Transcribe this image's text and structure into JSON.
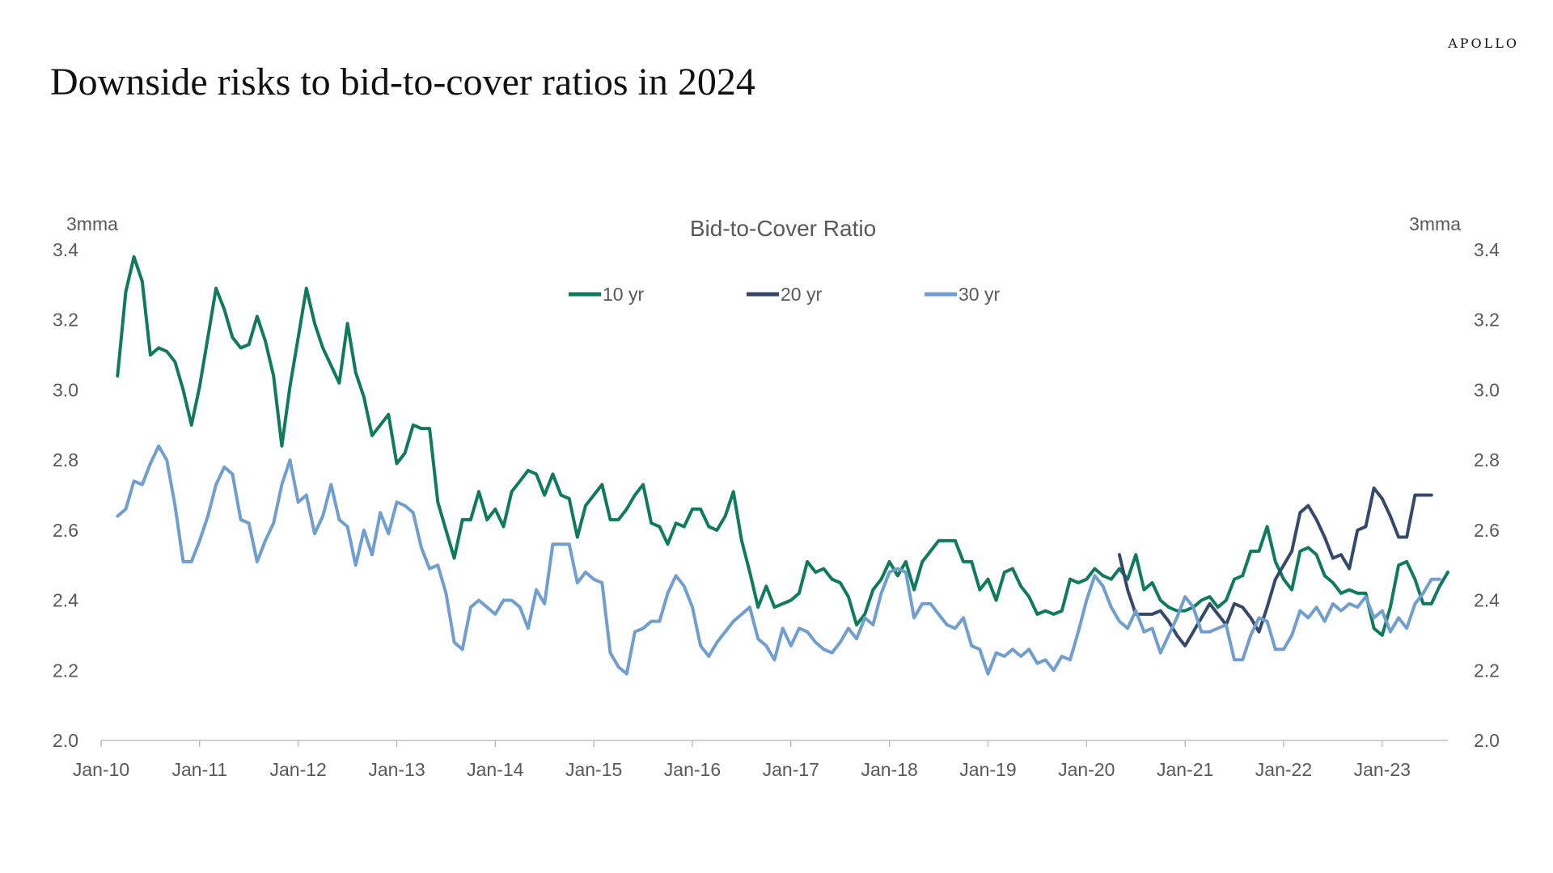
{
  "brand": "APOLLO",
  "headline": "Downside risks to bid-to-cover ratios in 2024",
  "chart_data": {
    "type": "line",
    "title": "Bid-to-Cover Ratio",
    "y_left_label": "3mma",
    "y_right_label": "3mma",
    "ylim": [
      2.0,
      3.4
    ],
    "y_ticks": [
      "2.0",
      "2.2",
      "2.4",
      "2.6",
      "2.8",
      "3.0",
      "3.2",
      "3.4"
    ],
    "x_start": "2010-01",
    "x_end": "2023-09",
    "x_ticks": [
      "Jan-10",
      "Jan-11",
      "Jan-12",
      "Jan-13",
      "Jan-14",
      "Jan-15",
      "Jan-16",
      "Jan-17",
      "Jan-18",
      "Jan-19",
      "Jan-20",
      "Jan-21",
      "Jan-22",
      "Jan-23"
    ],
    "legend_position": "top-center",
    "grid": false,
    "series": [
      {
        "name": "10 yr",
        "color": "#0f7a5c",
        "start": "2010-03",
        "values": [
          3.04,
          3.28,
          3.38,
          3.31,
          3.1,
          3.12,
          3.11,
          3.08,
          3.0,
          2.9,
          3.01,
          3.15,
          3.29,
          3.23,
          3.15,
          3.12,
          3.13,
          3.21,
          3.14,
          3.04,
          2.84,
          3.01,
          3.15,
          3.29,
          3.19,
          3.12,
          3.07,
          3.02,
          3.19,
          3.05,
          2.98,
          2.87,
          2.9,
          2.93,
          2.79,
          2.82,
          2.9,
          2.89,
          2.89,
          2.68,
          2.6,
          2.52,
          2.63,
          2.63,
          2.71,
          2.63,
          2.66,
          2.61,
          2.71,
          2.74,
          2.77,
          2.76,
          2.7,
          2.76,
          2.7,
          2.69,
          2.58,
          2.67,
          2.7,
          2.73,
          2.63,
          2.63,
          2.66,
          2.7,
          2.73,
          2.62,
          2.61,
          2.56,
          2.62,
          2.61,
          2.66,
          2.66,
          2.61,
          2.6,
          2.64,
          2.71,
          2.57,
          2.48,
          2.38,
          2.44,
          2.38,
          2.39,
          2.4,
          2.42,
          2.51,
          2.48,
          2.49,
          2.46,
          2.45,
          2.41,
          2.33,
          2.36,
          2.43,
          2.46,
          2.51,
          2.47,
          2.51,
          2.43,
          2.51,
          2.54,
          2.57,
          2.57,
          2.57,
          2.51,
          2.51,
          2.43,
          2.46,
          2.4,
          2.48,
          2.49,
          2.44,
          2.41,
          2.36,
          2.37,
          2.36,
          2.37,
          2.46,
          2.45,
          2.46,
          2.49,
          2.47,
          2.46,
          2.49,
          2.46,
          2.53,
          2.43,
          2.45,
          2.4,
          2.38,
          2.37,
          2.37,
          2.38,
          2.4,
          2.41,
          2.38,
          2.4,
          2.46,
          2.47,
          2.54,
          2.54,
          2.61,
          2.51,
          2.46,
          2.43,
          2.54,
          2.55,
          2.53,
          2.47,
          2.45,
          2.42,
          2.43,
          2.42,
          2.42,
          2.32,
          2.3,
          2.38,
          2.5,
          2.51,
          2.46,
          2.39,
          2.39,
          2.44,
          2.48
        ]
      },
      {
        "name": "20 yr",
        "color": "#34496b",
        "start": "2020-05",
        "values": [
          2.53,
          2.43,
          2.36,
          2.36,
          2.36,
          2.37,
          2.34,
          2.3,
          2.27,
          2.31,
          2.35,
          2.39,
          2.36,
          2.33,
          2.39,
          2.38,
          2.35,
          2.31,
          2.38,
          2.46,
          2.5,
          2.54,
          2.65,
          2.67,
          2.63,
          2.58,
          2.52,
          2.53,
          2.49,
          2.6,
          2.61,
          2.72,
          2.69,
          2.64,
          2.58,
          2.58,
          2.7,
          2.7,
          2.7
        ]
      },
      {
        "name": "30 yr",
        "color": "#6f9ecf",
        "start": "2010-03",
        "values": [
          2.64,
          2.66,
          2.74,
          2.73,
          2.79,
          2.84,
          2.8,
          2.67,
          2.51,
          2.51,
          2.57,
          2.64,
          2.73,
          2.78,
          2.76,
          2.63,
          2.62,
          2.51,
          2.57,
          2.62,
          2.73,
          2.8,
          2.68,
          2.7,
          2.59,
          2.64,
          2.73,
          2.63,
          2.61,
          2.5,
          2.6,
          2.53,
          2.65,
          2.59,
          2.68,
          2.67,
          2.65,
          2.55,
          2.49,
          2.5,
          2.42,
          2.28,
          2.26,
          2.38,
          2.4,
          2.38,
          2.36,
          2.4,
          2.4,
          2.38,
          2.32,
          2.43,
          2.39,
          2.56,
          2.56,
          2.56,
          2.45,
          2.48,
          2.46,
          2.45,
          2.25,
          2.21,
          2.19,
          2.31,
          2.32,
          2.34,
          2.34,
          2.42,
          2.47,
          2.44,
          2.38,
          2.27,
          2.24,
          2.28,
          2.31,
          2.34,
          2.36,
          2.38,
          2.29,
          2.27,
          2.23,
          2.32,
          2.27,
          2.32,
          2.31,
          2.28,
          2.26,
          2.25,
          2.28,
          2.32,
          2.29,
          2.35,
          2.33,
          2.42,
          2.48,
          2.49,
          2.48,
          2.35,
          2.39,
          2.39,
          2.36,
          2.33,
          2.32,
          2.35,
          2.27,
          2.26,
          2.19,
          2.25,
          2.24,
          2.26,
          2.24,
          2.26,
          2.22,
          2.23,
          2.2,
          2.24,
          2.23,
          2.31,
          2.4,
          2.47,
          2.44,
          2.38,
          2.34,
          2.32,
          2.37,
          2.31,
          2.32,
          2.25,
          2.3,
          2.35,
          2.41,
          2.38,
          2.31,
          2.31,
          2.32,
          2.33,
          2.23,
          2.23,
          2.3,
          2.35,
          2.34,
          2.26,
          2.26,
          2.3,
          2.37,
          2.35,
          2.38,
          2.34,
          2.39,
          2.37,
          2.39,
          2.38,
          2.41,
          2.35,
          2.37,
          2.31,
          2.35,
          2.32,
          2.39,
          2.42,
          2.46,
          2.46
        ]
      }
    ]
  }
}
